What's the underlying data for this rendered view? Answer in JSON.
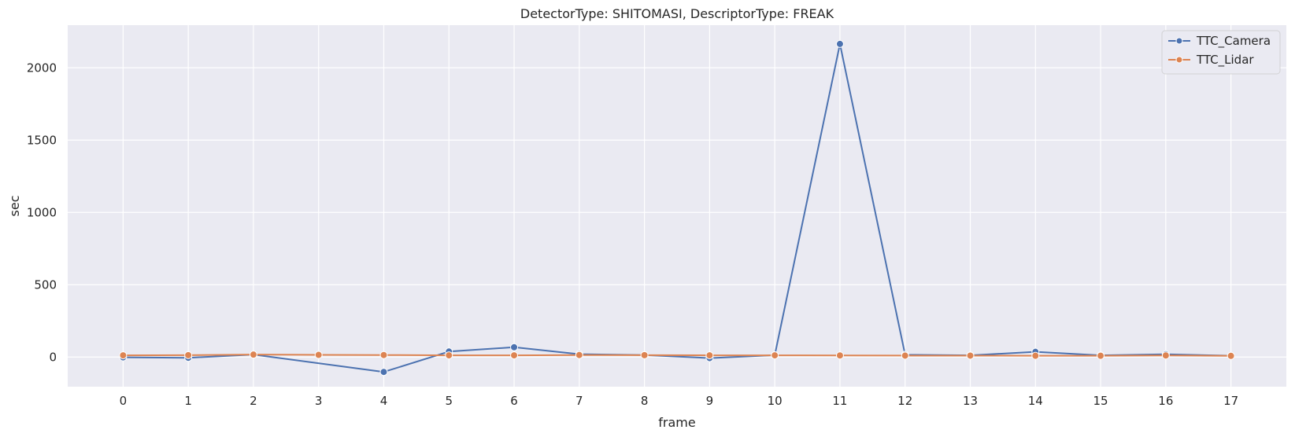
{
  "chart_data": {
    "type": "line",
    "title": "DetectorType: SHITOMASI, DescriptorType: FREAK",
    "xlabel": "frame",
    "ylabel": "sec",
    "x": [
      0,
      1,
      2,
      3,
      4,
      5,
      6,
      7,
      8,
      9,
      10,
      11,
      12,
      13,
      14,
      15,
      16,
      17
    ],
    "xlim": [
      -0.85,
      17.85
    ],
    "ylim": [
      -205,
      2295
    ],
    "yticks": [
      0,
      500,
      1000,
      1500,
      2000
    ],
    "grid": true,
    "legend_position": "top-right",
    "series": [
      {
        "name": "TTC_Camera",
        "color": "#4c72b0",
        "values": [
          {
            "x": 0,
            "y": -2
          },
          {
            "x": 1,
            "y": -5
          },
          {
            "x": 2,
            "y": 17
          },
          {
            "x": 4,
            "y": -103
          },
          {
            "x": 5,
            "y": 38
          },
          {
            "x": 6,
            "y": 68
          },
          {
            "x": 7,
            "y": 20
          },
          {
            "x": 8,
            "y": 14
          },
          {
            "x": 9,
            "y": -7
          },
          {
            "x": 10,
            "y": 13
          },
          {
            "x": 11,
            "y": 2165
          },
          {
            "x": 12,
            "y": 16
          },
          {
            "x": 13,
            "y": 12
          },
          {
            "x": 14,
            "y": 36
          },
          {
            "x": 15,
            "y": 12
          },
          {
            "x": 16,
            "y": 19
          },
          {
            "x": 17,
            "y": 9
          }
        ]
      },
      {
        "name": "TTC_Lidar",
        "color": "#dd8452",
        "values": [
          {
            "x": 0,
            "y": 12
          },
          {
            "x": 1,
            "y": 13
          },
          {
            "x": 2,
            "y": 17
          },
          {
            "x": 3,
            "y": 15
          },
          {
            "x": 4,
            "y": 14
          },
          {
            "x": 5,
            "y": 12
          },
          {
            "x": 6,
            "y": 12
          },
          {
            "x": 7,
            "y": 14
          },
          {
            "x": 8,
            "y": 13
          },
          {
            "x": 9,
            "y": 12
          },
          {
            "x": 10,
            "y": 12
          },
          {
            "x": 11,
            "y": 11
          },
          {
            "x": 12,
            "y": 10
          },
          {
            "x": 13,
            "y": 10
          },
          {
            "x": 14,
            "y": 9
          },
          {
            "x": 15,
            "y": 9
          },
          {
            "x": 16,
            "y": 11
          },
          {
            "x": 17,
            "y": 8
          }
        ]
      }
    ]
  }
}
